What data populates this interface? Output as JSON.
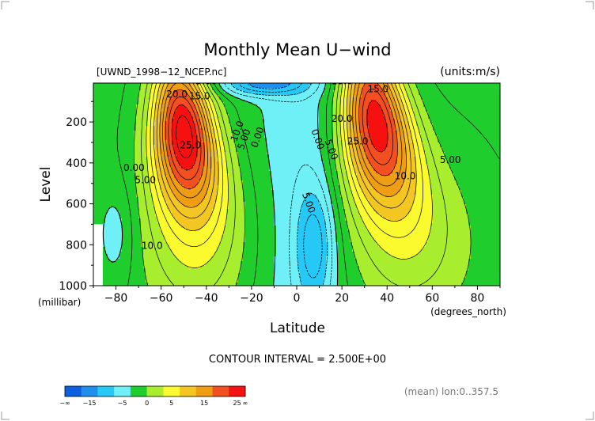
{
  "chart_data": {
    "type": "heatmap",
    "title": "Monthly Mean U−wind",
    "file_label": "[UWND_1998−12_NCEP.nc]",
    "units_label": "(units:m/s)",
    "ylabel": "Level",
    "ylabel_units": "(millibar)",
    "xlabel": "Latitude",
    "xlabel_units": "(degrees_north)",
    "x_ticks": [
      "−80",
      "−60",
      "−40",
      "−20",
      "0",
      "20",
      "40",
      "60",
      "80"
    ],
    "x_tick_values": [
      -80,
      -60,
      -40,
      -20,
      0,
      20,
      40,
      60,
      80
    ],
    "y_ticks": [
      "200",
      "400",
      "600",
      "800",
      "1000"
    ],
    "y_tick_values": [
      200,
      400,
      600,
      800,
      1000
    ],
    "xlim": [
      -90,
      90
    ],
    "ylim": [
      1000,
      10
    ],
    "contour_interval_text": "CONTOUR INTERVAL = 2.500E+00",
    "mean_text": "(mean) lon:0..357.5",
    "colorbar": {
      "tick_labels": [
        "−∞",
        "−15",
        "−5",
        "0",
        "5",
        "15",
        "25",
        "∞"
      ],
      "colors": [
        "#0b5fe0",
        "#1f8fee",
        "#26c8f5",
        "#6ff0f7",
        "#1fcd2c",
        "#a8ee2e",
        "#fafa2e",
        "#f4c622",
        "#ef9d12",
        "#f25020",
        "#f71010"
      ]
    },
    "jets": [
      {
        "lat": -50,
        "level": 250,
        "max": 30
      },
      {
        "lat": 35,
        "level": 200,
        "max": 30
      }
    ],
    "contour_labels": [
      {
        "text": "20.0",
        "lat": -53,
        "level": 80
      },
      {
        "text": "15.0",
        "lat": -43,
        "level": 90
      },
      {
        "text": "5.00",
        "lat": -40,
        "level": 15
      },
      {
        "text": "25.0",
        "lat": -47,
        "level": 330
      },
      {
        "text": "10.0",
        "lat": -25,
        "level": 250
      },
      {
        "text": "5.00",
        "lat": -22,
        "level": 290
      },
      {
        "text": "0.00",
        "lat": -16,
        "level": 280
      },
      {
        "text": "0.00",
        "lat": -72,
        "level": 440
      },
      {
        "text": "5.00",
        "lat": -67,
        "level": 500
      },
      {
        "text": "10.0",
        "lat": -64,
        "level": 820
      },
      {
        "text": "10.0",
        "lat": 20,
        "level": 15
      },
      {
        "text": "15.0",
        "lat": 36,
        "level": 55
      },
      {
        "text": "20.0",
        "lat": 20,
        "level": 200
      },
      {
        "text": "25.0",
        "lat": 27,
        "level": 310
      },
      {
        "text": "0.00",
        "lat": 8,
        "level": 290
      },
      {
        "text": "5.00",
        "lat": 14,
        "level": 340
      },
      {
        "text": "5.00",
        "lat": 4,
        "level": 600
      },
      {
        "text": "10.0",
        "lat": 48,
        "level": 480
      },
      {
        "text": "5.00",
        "lat": 68,
        "level": 400
      }
    ]
  }
}
